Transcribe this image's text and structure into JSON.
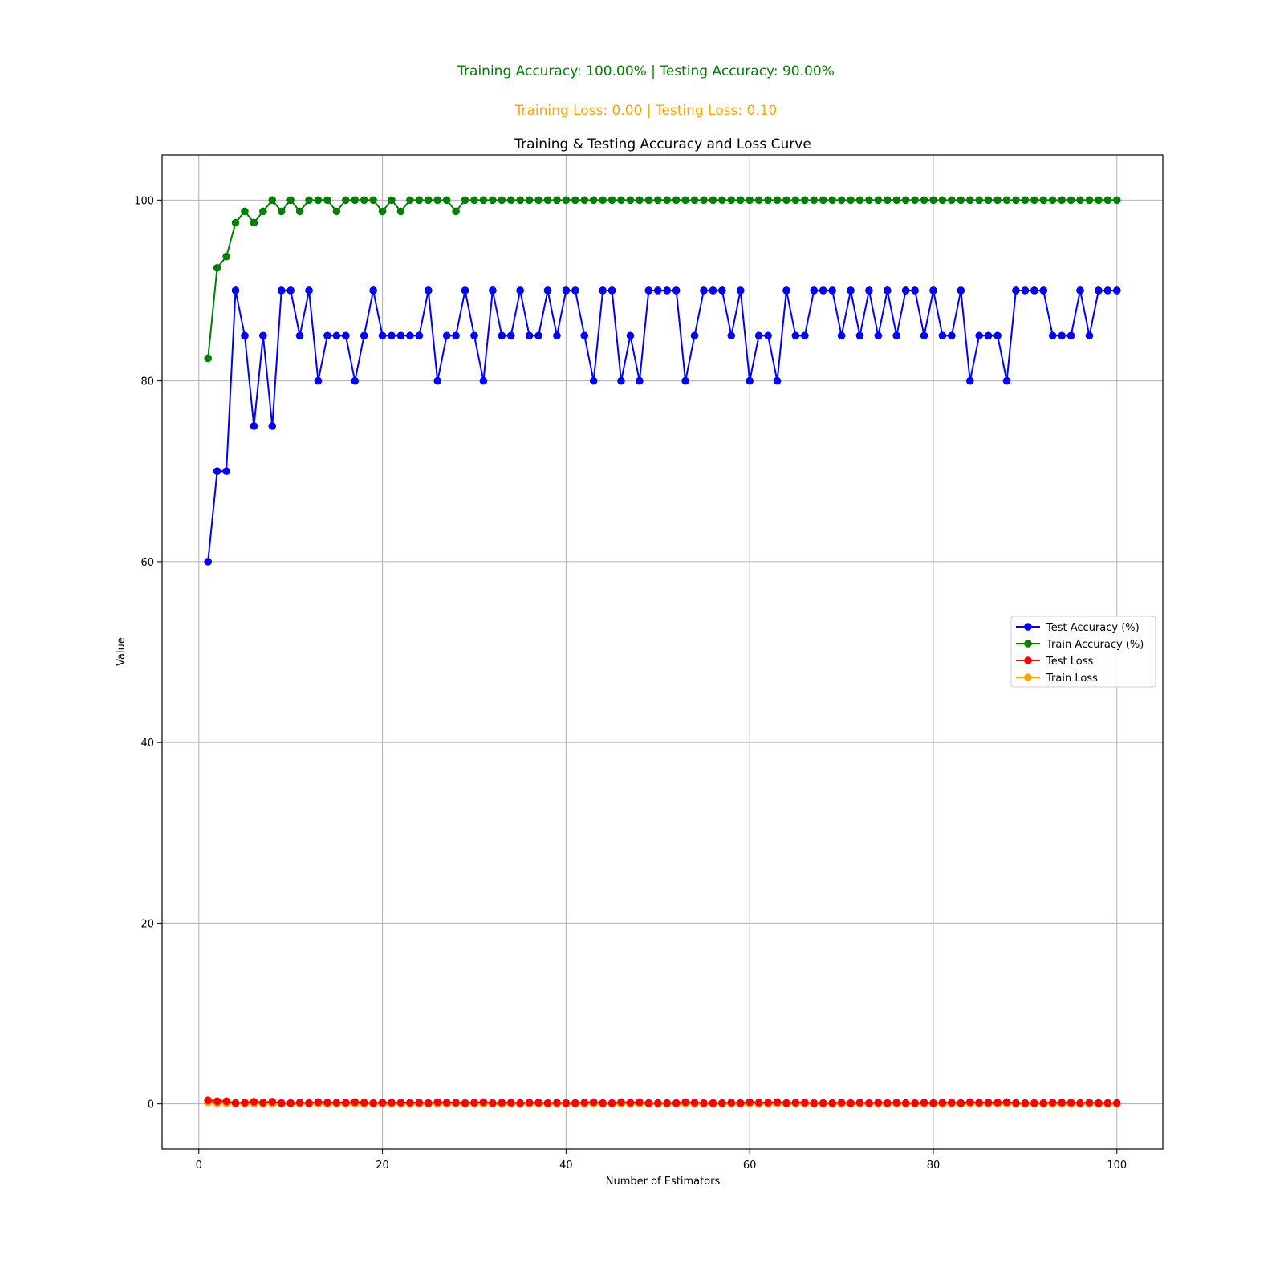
{
  "summary": {
    "accuracy_line": "Training Accuracy: 100.00%  |  Testing Accuracy: 90.00%",
    "loss_line": "Training Loss: 0.00  |  Testing Loss: 0.10",
    "accuracy_color": "#008000",
    "loss_color": "#ffa500"
  },
  "chart_data": {
    "type": "line",
    "title": "Training & Testing Accuracy and Loss Curve",
    "xlabel": "Number of Estimators",
    "ylabel": "Value",
    "xlim": [
      -4,
      105
    ],
    "ylim": [
      -5,
      105
    ],
    "xticks": [
      0,
      20,
      40,
      60,
      80,
      100
    ],
    "yticks": [
      0,
      20,
      40,
      60,
      80,
      100
    ],
    "grid": true,
    "legend_position": "center-right",
    "x": [
      1,
      2,
      3,
      4,
      5,
      6,
      7,
      8,
      9,
      10,
      11,
      12,
      13,
      14,
      15,
      16,
      17,
      18,
      19,
      20,
      21,
      22,
      23,
      24,
      25,
      26,
      27,
      28,
      29,
      30,
      31,
      32,
      33,
      34,
      35,
      36,
      37,
      38,
      39,
      40,
      41,
      42,
      43,
      44,
      45,
      46,
      47,
      48,
      49,
      50,
      51,
      52,
      53,
      54,
      55,
      56,
      57,
      58,
      59,
      60,
      61,
      62,
      63,
      64,
      65,
      66,
      67,
      68,
      69,
      70,
      71,
      72,
      73,
      74,
      75,
      76,
      77,
      78,
      79,
      80,
      81,
      82,
      83,
      84,
      85,
      86,
      87,
      88,
      89,
      90,
      91,
      92,
      93,
      94,
      95,
      96,
      97,
      98,
      99,
      100
    ],
    "series": [
      {
        "name": "Test Accuracy (%)",
        "color": "#0000ff",
        "values": [
          60,
          70,
          70,
          90,
          85,
          75,
          85,
          75,
          90,
          90,
          85,
          90,
          80,
          85,
          85,
          85,
          80,
          85,
          90,
          85,
          85,
          85,
          85,
          85,
          90,
          80,
          85,
          85,
          90,
          85,
          80,
          90,
          85,
          85,
          90,
          85,
          85,
          90,
          85,
          90,
          90,
          85,
          80,
          90,
          90,
          80,
          85,
          80,
          90,
          90,
          90,
          90,
          80,
          85,
          90,
          90,
          90,
          85,
          90,
          80,
          85,
          85,
          80,
          90,
          85,
          85,
          90,
          90,
          90,
          85,
          90,
          85,
          90,
          85,
          90,
          85,
          90,
          90,
          85,
          90,
          85,
          85,
          90,
          80,
          85,
          85,
          85,
          80,
          90,
          90,
          90,
          90,
          85,
          85,
          85,
          90,
          85,
          90,
          90,
          90
        ]
      },
      {
        "name": "Train Accuracy (%)",
        "color": "#008000",
        "values": [
          82.5,
          92.5,
          93.75,
          97.5,
          98.75,
          97.5,
          98.75,
          100,
          98.75,
          100,
          98.75,
          100,
          100,
          100,
          98.75,
          100,
          100,
          100,
          100,
          98.75,
          100,
          98.75,
          100,
          100,
          100,
          100,
          100,
          98.75,
          100,
          100,
          100,
          100,
          100,
          100,
          100,
          100,
          100,
          100,
          100,
          100,
          100,
          100,
          100,
          100,
          100,
          100,
          100,
          100,
          100,
          100,
          100,
          100,
          100,
          100,
          100,
          100,
          100,
          100,
          100,
          100,
          100,
          100,
          100,
          100,
          100,
          100,
          100,
          100,
          100,
          100,
          100,
          100,
          100,
          100,
          100,
          100,
          100,
          100,
          100,
          100,
          100,
          100,
          100,
          100,
          100,
          100,
          100,
          100,
          100,
          100,
          100,
          100,
          100,
          100,
          100,
          100,
          100,
          100,
          100,
          100
        ]
      },
      {
        "name": "Test Loss",
        "color": "#ff0000",
        "values": [
          0.4,
          0.3,
          0.3,
          0.1,
          0.15,
          0.25,
          0.15,
          0.25,
          0.1,
          0.1,
          0.15,
          0.1,
          0.2,
          0.15,
          0.15,
          0.15,
          0.2,
          0.15,
          0.1,
          0.15,
          0.15,
          0.15,
          0.15,
          0.15,
          0.1,
          0.2,
          0.15,
          0.15,
          0.1,
          0.15,
          0.2,
          0.1,
          0.15,
          0.15,
          0.1,
          0.15,
          0.15,
          0.1,
          0.15,
          0.1,
          0.1,
          0.15,
          0.2,
          0.1,
          0.1,
          0.2,
          0.15,
          0.2,
          0.1,
          0.1,
          0.1,
          0.1,
          0.2,
          0.15,
          0.1,
          0.1,
          0.1,
          0.15,
          0.1,
          0.2,
          0.15,
          0.15,
          0.2,
          0.1,
          0.15,
          0.15,
          0.1,
          0.1,
          0.1,
          0.15,
          0.1,
          0.15,
          0.1,
          0.15,
          0.1,
          0.15,
          0.1,
          0.1,
          0.15,
          0.1,
          0.15,
          0.15,
          0.1,
          0.2,
          0.15,
          0.15,
          0.15,
          0.2,
          0.1,
          0.1,
          0.1,
          0.1,
          0.15,
          0.15,
          0.15,
          0.1,
          0.15,
          0.1,
          0.1,
          0.1
        ]
      },
      {
        "name": "Train Loss",
        "color": "#ffa500",
        "values": [
          0.175,
          0.075,
          0.0625,
          0.025,
          0.0125,
          0.025,
          0.0125,
          0,
          0.0125,
          0,
          0.0125,
          0,
          0,
          0,
          0.0125,
          0,
          0,
          0,
          0,
          0.0125,
          0,
          0.0125,
          0,
          0,
          0,
          0,
          0,
          0.0125,
          0,
          0,
          0,
          0,
          0,
          0,
          0,
          0,
          0,
          0,
          0,
          0,
          0,
          0,
          0,
          0,
          0,
          0,
          0,
          0,
          0,
          0,
          0,
          0,
          0,
          0,
          0,
          0,
          0,
          0,
          0,
          0,
          0,
          0,
          0,
          0,
          0,
          0,
          0,
          0,
          0,
          0,
          0,
          0,
          0,
          0,
          0,
          0,
          0,
          0,
          0,
          0,
          0,
          0,
          0,
          0,
          0,
          0,
          0,
          0,
          0,
          0,
          0,
          0,
          0,
          0,
          0,
          0,
          0,
          0,
          0,
          0
        ]
      }
    ]
  }
}
